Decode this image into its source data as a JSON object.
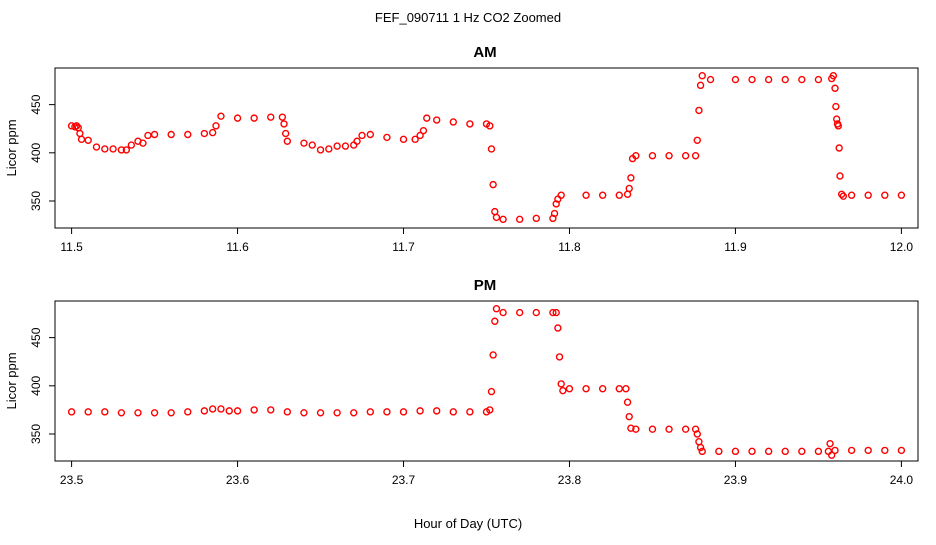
{
  "figure": {
    "suptitle": "FEF_090711  1 Hz CO2 Zoomed",
    "shared_xlabel": "Hour of Day (UTC)",
    "point_color": "#ff0000"
  },
  "chart_data": [
    {
      "type": "scatter",
      "title": "AM",
      "xlabel": "",
      "ylabel": "Licor ppm",
      "xlim": [
        11.49,
        12.01
      ],
      "ylim": [
        322,
        488
      ],
      "xticks": [
        11.5,
        11.6,
        11.7,
        11.8,
        11.9,
        12.0
      ],
      "xtick_labels": [
        "11.5",
        "11.6",
        "11.7",
        "11.8",
        "11.9",
        "12.0"
      ],
      "yticks": [
        350,
        400,
        450
      ],
      "ytick_labels": [
        "350",
        "400",
        "450"
      ],
      "color": "#ff0000",
      "marker": "open-circle",
      "grid": false,
      "points": [
        [
          11.5,
          428
        ],
        [
          11.502,
          427
        ],
        [
          11.503,
          428
        ],
        [
          11.504,
          426
        ],
        [
          11.505,
          420
        ],
        [
          11.506,
          414
        ],
        [
          11.51,
          413
        ],
        [
          11.515,
          406
        ],
        [
          11.52,
          404
        ],
        [
          11.525,
          404
        ],
        [
          11.53,
          403
        ],
        [
          11.533,
          403
        ],
        [
          11.536,
          408
        ],
        [
          11.54,
          412
        ],
        [
          11.543,
          410
        ],
        [
          11.546,
          418
        ],
        [
          11.55,
          419
        ],
        [
          11.56,
          419
        ],
        [
          11.57,
          419
        ],
        [
          11.58,
          420
        ],
        [
          11.585,
          421
        ],
        [
          11.587,
          428
        ],
        [
          11.59,
          438
        ],
        [
          11.6,
          436
        ],
        [
          11.61,
          436
        ],
        [
          11.62,
          437
        ],
        [
          11.627,
          437
        ],
        [
          11.628,
          430
        ],
        [
          11.629,
          420
        ],
        [
          11.63,
          412
        ],
        [
          11.64,
          410
        ],
        [
          11.645,
          408
        ],
        [
          11.65,
          403
        ],
        [
          11.655,
          404
        ],
        [
          11.66,
          407
        ],
        [
          11.665,
          407
        ],
        [
          11.67,
          408
        ],
        [
          11.672,
          412
        ],
        [
          11.675,
          418
        ],
        [
          11.68,
          419
        ],
        [
          11.69,
          416
        ],
        [
          11.7,
          414
        ],
        [
          11.707,
          414
        ],
        [
          11.71,
          418
        ],
        [
          11.712,
          423
        ],
        [
          11.714,
          436
        ],
        [
          11.72,
          434
        ],
        [
          11.73,
          432
        ],
        [
          11.74,
          430
        ],
        [
          11.75,
          430
        ],
        [
          11.752,
          428
        ],
        [
          11.753,
          404
        ],
        [
          11.754,
          367
        ],
        [
          11.755,
          339
        ],
        [
          11.756,
          333
        ],
        [
          11.76,
          331
        ],
        [
          11.77,
          331
        ],
        [
          11.78,
          332
        ],
        [
          11.79,
          332
        ],
        [
          11.791,
          337
        ],
        [
          11.792,
          347
        ],
        [
          11.793,
          352
        ],
        [
          11.795,
          356
        ],
        [
          11.81,
          356
        ],
        [
          11.82,
          356
        ],
        [
          11.83,
          356
        ],
        [
          11.835,
          357
        ],
        [
          11.836,
          363
        ],
        [
          11.837,
          374
        ],
        [
          11.838,
          394
        ],
        [
          11.84,
          397
        ],
        [
          11.85,
          397
        ],
        [
          11.86,
          397
        ],
        [
          11.87,
          397
        ],
        [
          11.876,
          397
        ],
        [
          11.877,
          413
        ],
        [
          11.878,
          444
        ],
        [
          11.879,
          470
        ],
        [
          11.88,
          480
        ],
        [
          11.885,
          476
        ],
        [
          11.9,
          476
        ],
        [
          11.91,
          476
        ],
        [
          11.92,
          476
        ],
        [
          11.93,
          476
        ],
        [
          11.94,
          476
        ],
        [
          11.95,
          476
        ],
        [
          11.958,
          477
        ],
        [
          11.959,
          480
        ],
        [
          11.96,
          467
        ],
        [
          11.9605,
          448
        ],
        [
          11.961,
          435
        ],
        [
          11.9615,
          430
        ],
        [
          11.962,
          428
        ],
        [
          11.9625,
          405
        ],
        [
          11.963,
          376
        ],
        [
          11.964,
          357
        ],
        [
          11.965,
          355
        ],
        [
          11.97,
          356
        ],
        [
          11.98,
          356
        ],
        [
          11.99,
          356
        ],
        [
          12.0,
          356
        ]
      ]
    },
    {
      "type": "scatter",
      "title": "PM",
      "xlabel": "",
      "ylabel": "Licor ppm",
      "xlim": [
        23.49,
        24.01
      ],
      "ylim": [
        322,
        488
      ],
      "xticks": [
        23.5,
        23.6,
        23.7,
        23.8,
        23.9,
        24.0
      ],
      "xtick_labels": [
        "23.5",
        "23.6",
        "23.7",
        "23.8",
        "23.9",
        "24.0"
      ],
      "yticks": [
        350,
        400,
        450
      ],
      "ytick_labels": [
        "350",
        "400",
        "450"
      ],
      "color": "#ff0000",
      "marker": "open-circle",
      "grid": false,
      "points": [
        [
          23.5,
          373
        ],
        [
          23.51,
          373
        ],
        [
          23.52,
          373
        ],
        [
          23.53,
          372
        ],
        [
          23.54,
          372
        ],
        [
          23.55,
          372
        ],
        [
          23.56,
          372
        ],
        [
          23.57,
          373
        ],
        [
          23.58,
          374
        ],
        [
          23.585,
          376
        ],
        [
          23.59,
          376
        ],
        [
          23.595,
          374
        ],
        [
          23.6,
          374
        ],
        [
          23.61,
          375
        ],
        [
          23.62,
          375
        ],
        [
          23.63,
          373
        ],
        [
          23.64,
          372
        ],
        [
          23.65,
          372
        ],
        [
          23.66,
          372
        ],
        [
          23.67,
          372
        ],
        [
          23.68,
          373
        ],
        [
          23.69,
          373
        ],
        [
          23.7,
          373
        ],
        [
          23.71,
          374
        ],
        [
          23.72,
          374
        ],
        [
          23.73,
          373
        ],
        [
          23.74,
          373
        ],
        [
          23.75,
          373
        ],
        [
          23.752,
          375
        ],
        [
          23.753,
          394
        ],
        [
          23.754,
          432
        ],
        [
          23.755,
          467
        ],
        [
          23.756,
          480
        ],
        [
          23.76,
          476
        ],
        [
          23.77,
          476
        ],
        [
          23.78,
          476
        ],
        [
          23.79,
          476
        ],
        [
          23.792,
          476
        ],
        [
          23.793,
          460
        ],
        [
          23.794,
          430
        ],
        [
          23.795,
          402
        ],
        [
          23.796,
          395
        ],
        [
          23.8,
          397
        ],
        [
          23.81,
          397
        ],
        [
          23.82,
          397
        ],
        [
          23.83,
          397
        ],
        [
          23.834,
          397
        ],
        [
          23.835,
          383
        ],
        [
          23.836,
          368
        ],
        [
          23.837,
          356
        ],
        [
          23.84,
          355
        ],
        [
          23.85,
          355
        ],
        [
          23.86,
          355
        ],
        [
          23.87,
          355
        ],
        [
          23.876,
          355
        ],
        [
          23.877,
          350
        ],
        [
          23.878,
          342
        ],
        [
          23.879,
          336
        ],
        [
          23.88,
          332
        ],
        [
          23.89,
          332
        ],
        [
          23.9,
          332
        ],
        [
          23.91,
          332
        ],
        [
          23.92,
          332
        ],
        [
          23.93,
          332
        ],
        [
          23.94,
          332
        ],
        [
          23.95,
          332
        ],
        [
          23.956,
          332
        ],
        [
          23.957,
          340
        ],
        [
          23.958,
          328
        ],
        [
          23.96,
          333
        ],
        [
          23.97,
          333
        ],
        [
          23.98,
          333
        ],
        [
          23.99,
          333
        ],
        [
          24.0,
          333
        ]
      ]
    }
  ]
}
